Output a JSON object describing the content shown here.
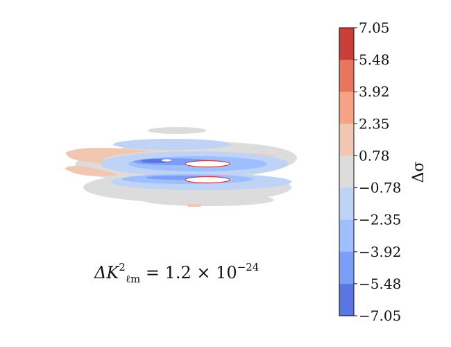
{
  "chart_data": {
    "type": "heatmap",
    "title": "",
    "xlabel": "",
    "ylabel": "",
    "colorbar": {
      "label": "Δσ",
      "ticks": [
        "7.05",
        "5.48",
        "3.92",
        "2.35",
        "0.78",
        "−0.78",
        "−2.35",
        "−3.92",
        "−5.48",
        "−7.05"
      ],
      "tick_values": [
        7.05,
        5.48,
        3.92,
        2.35,
        0.78,
        -0.78,
        -2.35,
        -3.92,
        -5.48,
        -7.05
      ],
      "colors": [
        "#cb3e38",
        "#e8765c",
        "#f6a385",
        "#f1c7b1",
        "#dcdcdc",
        "#bfd3f6",
        "#9ebeff",
        "#7b9ff9",
        "#5977e3"
      ]
    },
    "annotation": {
      "lhs_base": "ΔK",
      "lhs_sup": "2",
      "lhs_sub": "ℓm",
      "equals": "= 1.2 × 10",
      "exponent": "−24"
    },
    "contour_levels": [
      -7.05,
      -5.48,
      -3.92,
      -2.35,
      -0.78,
      0.78,
      2.35,
      3.92,
      5.48,
      7.05
    ],
    "contour_colors_by_level": {
      "near_zero": "#dcdcdc",
      "weak_positive": "#f1c7b1",
      "weak_negative": "#bfd3f6",
      "moderate_negative": "#9ebeff",
      "strong_negative": "#7b9ff9",
      "strongest_negative": "#5977e3",
      "peak_positive": "#cb3e38"
    }
  }
}
